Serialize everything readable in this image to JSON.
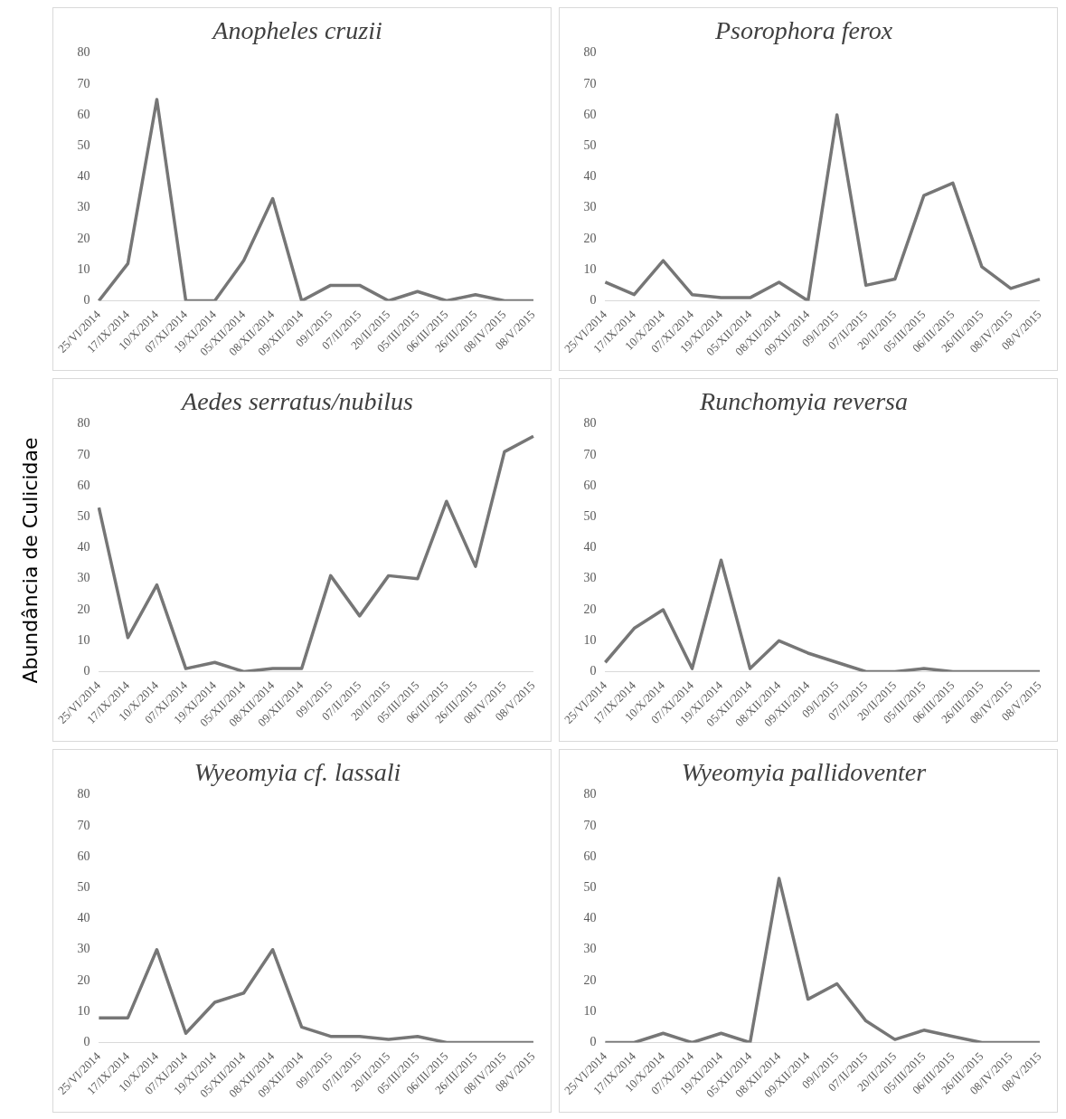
{
  "chart_data": [
    {
      "type": "line",
      "title": "Anopheles cruzii",
      "categories": [
        "25/VI/2014",
        "17/IX/2014",
        "10/X/2014",
        "07/XI/2014",
        "19/XI/2014",
        "05/XII/2014",
        "08/XII/2014",
        "09/XII/2014",
        "09/I/2015",
        "07/II/2015",
        "20/II/2015",
        "05/III/2015",
        "06/III/2015",
        "26/III/2015",
        "08/IV/2015",
        "08/V/2015"
      ],
      "series": [
        {
          "color": "#767676",
          "values": [
            0,
            12,
            65,
            0,
            0,
            13,
            33,
            0,
            5,
            5,
            0,
            3,
            0,
            2,
            0,
            0
          ]
        }
      ],
      "ylim": [
        0,
        80
      ],
      "yticks": [
        0,
        10,
        20,
        30,
        40,
        50,
        60,
        70,
        80
      ]
    },
    {
      "type": "line",
      "title": "Psorophora ferox",
      "categories": [
        "25/VI/2014",
        "17/IX/2014",
        "10/X/2014",
        "07/XI/2014",
        "19/XI/2014",
        "05/XII/2014",
        "08/XII/2014",
        "09/XII/2014",
        "09/I/2015",
        "07/II/2015",
        "20/II/2015",
        "05/III/2015",
        "06/III/2015",
        "26/III/2015",
        "08/IV/2015",
        "08/V/2015"
      ],
      "series": [
        {
          "color": "#767676",
          "values": [
            6,
            2,
            13,
            2,
            1,
            1,
            6,
            0,
            60,
            5,
            7,
            34,
            38,
            11,
            4,
            7
          ]
        }
      ],
      "ylim": [
        0,
        80
      ],
      "yticks": [
        0,
        10,
        20,
        30,
        40,
        50,
        60,
        70,
        80
      ]
    },
    {
      "type": "line",
      "title": "Aedes serratus/nubilus",
      "ylabel": "Abundância de Culicidae",
      "categories": [
        "25/VI/2014",
        "17/IX/2014",
        "10/X/2014",
        "07/XI/2014",
        "19/XI/2014",
        "05/XII/2014",
        "08/XII/2014",
        "09/XII/2014",
        "09/I/2015",
        "07/II/2015",
        "20/II/2015",
        "05/III/2015",
        "06/III/2015",
        "26/III/2015",
        "08/IV/2015",
        "08/V/2015"
      ],
      "series": [
        {
          "color": "#767676",
          "values": [
            53,
            11,
            28,
            1,
            3,
            0,
            1,
            1,
            31,
            18,
            31,
            30,
            55,
            34,
            71,
            76
          ]
        }
      ],
      "ylim": [
        0,
        80
      ],
      "yticks": [
        0,
        10,
        20,
        30,
        40,
        50,
        60,
        70,
        80
      ]
    },
    {
      "type": "line",
      "title": "Runchomyia reversa",
      "categories": [
        "25/VI/2014",
        "17/IX/2014",
        "10/X/2014",
        "07/XI/2014",
        "19/XI/2014",
        "05/XII/2014",
        "08/XII/2014",
        "09/XII/2014",
        "09/I/2015",
        "07/II/2015",
        "20/II/2015",
        "05/III/2015",
        "06/III/2015",
        "26/III/2015",
        "08/IV/2015",
        "08/V/2015"
      ],
      "series": [
        {
          "color": "#767676",
          "values": [
            3,
            14,
            20,
            1,
            36,
            1,
            10,
            6,
            3,
            0,
            0,
            1,
            0,
            0,
            0,
            0
          ]
        }
      ],
      "ylim": [
        0,
        80
      ],
      "yticks": [
        0,
        10,
        20,
        30,
        40,
        50,
        60,
        70,
        80
      ]
    },
    {
      "type": "line",
      "title": "Wyeomyia cf. lassali",
      "categories": [
        "25/VI/2014",
        "17/IX/2014",
        "10/X/2014",
        "07/XI/2014",
        "19/XI/2014",
        "05/XII/2014",
        "08/XII/2014",
        "09/XII/2014",
        "09/I/2015",
        "07/II/2015",
        "20/II/2015",
        "05/III/2015",
        "06/III/2015",
        "26/III/2015",
        "08/IV/2015",
        "08/V/2015"
      ],
      "series": [
        {
          "color": "#767676",
          "values": [
            8,
            8,
            30,
            3,
            13,
            16,
            30,
            5,
            2,
            2,
            1,
            2,
            0,
            0,
            0,
            0
          ]
        }
      ],
      "ylim": [
        0,
        80
      ],
      "yticks": [
        0,
        10,
        20,
        30,
        40,
        50,
        60,
        70,
        80
      ]
    },
    {
      "type": "line",
      "title": "Wyeomyia pallidoventer",
      "categories": [
        "25/VI/2014",
        "17/IX/2014",
        "10/X/2014",
        "07/XI/2014",
        "19/XI/2014",
        "05/XII/2014",
        "08/XII/2014",
        "09/XII/2014",
        "09/I/2015",
        "07/II/2015",
        "20/II/2015",
        "05/III/2015",
        "06/III/2015",
        "26/III/2015",
        "08/IV/2015",
        "08/V/2015"
      ],
      "series": [
        {
          "color": "#767676",
          "values": [
            0,
            0,
            3,
            0,
            3,
            0,
            53,
            14,
            19,
            7,
            1,
            4,
            2,
            0,
            0,
            0
          ]
        }
      ],
      "ylim": [
        0,
        80
      ],
      "yticks": [
        0,
        10,
        20,
        30,
        40,
        50,
        60,
        70,
        80
      ]
    }
  ]
}
